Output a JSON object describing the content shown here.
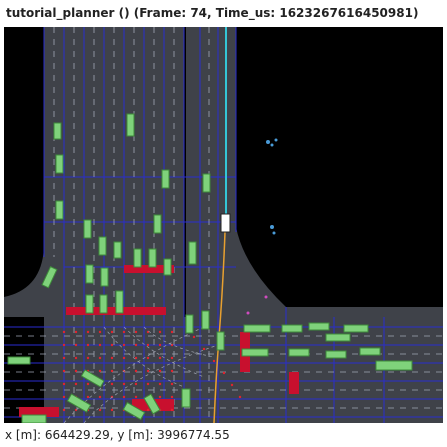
{
  "window": {
    "title": "tutorial_planner () (Frame: 74, Time_us: 1623267616450981)"
  },
  "map": {
    "coordinate_readout": "x [m]: 664429.29, y [m]: 3996774.55"
  },
  "colors": {
    "background": "#000000",
    "road": "#3f4249",
    "lane_outline": "#2a2dcf",
    "lane_divider": "#a0a6b4",
    "vehicle_fill": "#7fd27b",
    "vehicle_stroke": "#3e8a3a",
    "ego_fill": "#ffffff",
    "trajectory": "#e8a030",
    "route": "#34c6d6",
    "red_zone": "#c8102e"
  },
  "icons": {
    "pedestrian": "pedestrian-icon",
    "ego": "ego-vehicle-icon"
  }
}
